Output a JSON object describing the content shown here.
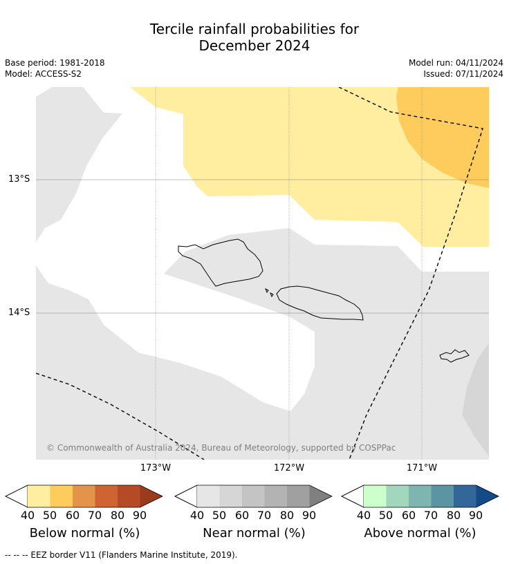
{
  "title_line1": "Tercile rainfall probabilities for",
  "title_line2": "December 2024",
  "base_period": "Base period: 1981-2018",
  "model": "Model: ACCESS-S2",
  "model_run": "Model run: 04/11/2024",
  "issued": "Issued: 07/11/2024",
  "map": {
    "lat_labels": [
      "13°S",
      "14°S"
    ],
    "lon_labels": [
      "173°W",
      "172°W",
      "171°W"
    ],
    "copyright": "© Commonwealth of Australia 2024, Bureau of Meteorology, supported by COSPPac",
    "colors": {
      "below_40": "#ffeda0",
      "below_50": "#fecc5c",
      "near_40": "#e6e6e6",
      "near_50": "#d6d6d6",
      "coast": "#000000",
      "eez": "#000000"
    }
  },
  "legends": [
    {
      "name": "Below normal (%)",
      "ticks": [
        "40",
        "50",
        "60",
        "70",
        "80",
        "90"
      ],
      "colors": [
        "#ffeda0",
        "#fecc5c",
        "#e3944a",
        "#cf6331",
        "#b54a27",
        "#9c3a1e"
      ]
    },
    {
      "name": "Near normal (%)",
      "ticks": [
        "40",
        "50",
        "60",
        "70",
        "80",
        "90"
      ],
      "colors": [
        "#e6e6e6",
        "#d6d6d6",
        "#c4c4c4",
        "#b3b3b3",
        "#a0a0a0",
        "#808080"
      ]
    },
    {
      "name": "Above normal (%)",
      "ticks": [
        "40",
        "50",
        "60",
        "70",
        "80",
        "90"
      ],
      "colors": [
        "#ccffcc",
        "#a2d6be",
        "#7fb5b1",
        "#5b95a3",
        "#336699",
        "#124b86"
      ]
    }
  ],
  "footer": "--  --  -- EEZ border V11 (Flanders Marine Institute, 2019)."
}
